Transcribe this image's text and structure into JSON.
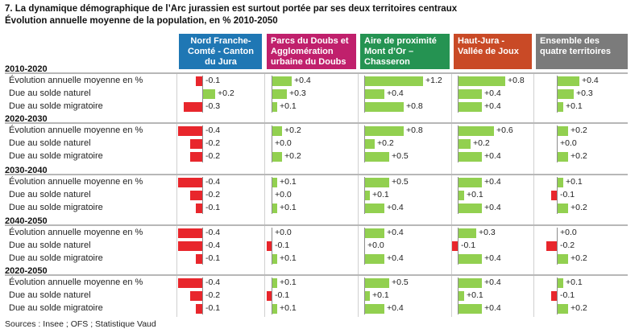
{
  "title": "7. La dynamique démographique de l’Arc jurassien est surtout portée par ses deux territoires centraux",
  "subtitle": "Évolution annuelle moyenne de la population, en % 2010-2050",
  "source": "Sources : Insee ; OFS ; Statistique Vaud",
  "colors": {
    "positive": "#92d050",
    "negative": "#e8262c"
  },
  "chart_data": {
    "type": "bar",
    "orientation": "horizontal",
    "unit": "%",
    "row_labels": [
      "Évolution annuelle moyenne en %",
      "Due au solde naturel",
      "Due au solde migratoire"
    ],
    "columns": [
      {
        "name": "Nord Franche-Comté - Canton du Jura",
        "header_lines": [
          "Nord Franche-",
          "Comté - Canton",
          "du Jura"
        ],
        "color": "#1f77b4",
        "align": "center"
      },
      {
        "name": "Parcs du Doubs et Agglomération urbaine du Doubs",
        "header_lines": [
          "Parcs du Doubs et",
          "Agglomération",
          "urbaine du Doubs"
        ],
        "color": "#c0206c",
        "align": "left"
      },
      {
        "name": "Aire de proximité Mont d’Or – Chasseron",
        "header_lines": [
          "Aire de proximité",
          "Mont d’Or –",
          "Chasseron"
        ],
        "color": "#259352",
        "align": "left"
      },
      {
        "name": "Haut-Jura - Vallée de Joux",
        "header_lines": [
          "Haut-Jura -",
          "Vallée de Joux"
        ],
        "color": "#c94a26",
        "align": "left"
      },
      {
        "name": "Ensemble des quatre territoires",
        "header_lines": [
          "Ensemble des",
          "quatre territoires"
        ],
        "color": "#7b7b7b",
        "align": "left"
      }
    ],
    "periods": [
      {
        "label": "2010-2020",
        "values": [
          [
            -0.1,
            0.4,
            1.2,
            0.8,
            0.4
          ],
          [
            0.2,
            0.3,
            0.4,
            0.4,
            0.3
          ],
          [
            -0.3,
            0.1,
            0.8,
            0.4,
            0.1
          ]
        ],
        "labels": [
          [
            "-0.1",
            "+0.4",
            "+1.2",
            "+0.8",
            "+0.4"
          ],
          [
            "+0.2",
            "+0.3",
            "+0.4",
            "+0.4",
            "+0.3"
          ],
          [
            "-0.3",
            "+0.1",
            "+0.8",
            "+0.4",
            "+0.1"
          ]
        ]
      },
      {
        "label": "2020-2030",
        "values": [
          [
            -0.4,
            0.2,
            0.8,
            0.6,
            0.2
          ],
          [
            -0.2,
            0.0,
            0.2,
            0.2,
            0.0
          ],
          [
            -0.2,
            0.2,
            0.5,
            0.4,
            0.2
          ]
        ],
        "labels": [
          [
            "-0.4",
            "+0.2",
            "+0.8",
            "+0.6",
            "+0.2"
          ],
          [
            "-0.2",
            "+0.0",
            "+0.2",
            "+0.2",
            "+0.0"
          ],
          [
            "-0.2",
            "+0.2",
            "+0.5",
            "+0.4",
            "+0.2"
          ]
        ]
      },
      {
        "label": "2030-2040",
        "values": [
          [
            -0.4,
            0.1,
            0.5,
            0.4,
            0.1
          ],
          [
            -0.2,
            0.0,
            0.1,
            0.1,
            -0.1
          ],
          [
            -0.1,
            0.1,
            0.4,
            0.4,
            0.2
          ]
        ],
        "labels": [
          [
            "-0.4",
            "+0.1",
            "+0.5",
            "+0.4",
            "+0.1"
          ],
          [
            "-0.2",
            "+0.0",
            "+0.1",
            "+0.1",
            "-0.1"
          ],
          [
            "-0.1",
            "+0.1",
            "+0.4",
            "+0.4",
            "+0.2"
          ]
        ]
      },
      {
        "label": "2040-2050",
        "values": [
          [
            -0.4,
            0.0,
            0.4,
            0.3,
            0.0
          ],
          [
            -0.4,
            -0.1,
            0.0,
            -0.1,
            -0.2
          ],
          [
            -0.1,
            0.1,
            0.4,
            0.4,
            0.2
          ]
        ],
        "labels": [
          [
            "-0.4",
            "+0.0",
            "+0.4",
            "+0.3",
            "+0.0"
          ],
          [
            "-0.4",
            "-0.1",
            "+0.0",
            "-0.1",
            "-0.2"
          ],
          [
            "-0.1",
            "+0.1",
            "+0.4",
            "+0.4",
            "+0.2"
          ]
        ]
      },
      {
        "label": "2020-2050",
        "values": [
          [
            -0.4,
            0.1,
            0.5,
            0.4,
            0.1
          ],
          [
            -0.2,
            -0.1,
            0.1,
            0.1,
            -0.1
          ],
          [
            -0.1,
            0.1,
            0.4,
            0.4,
            0.2
          ]
        ],
        "labels": [
          [
            "-0.4",
            "+0.1",
            "+0.5",
            "+0.4",
            "+0.1"
          ],
          [
            "-0.2",
            "-0.1",
            "+0.1",
            "+0.1",
            "-0.1"
          ],
          [
            "-0.1",
            "+0.1",
            "+0.4",
            "+0.4",
            "+0.2"
          ]
        ]
      }
    ]
  }
}
